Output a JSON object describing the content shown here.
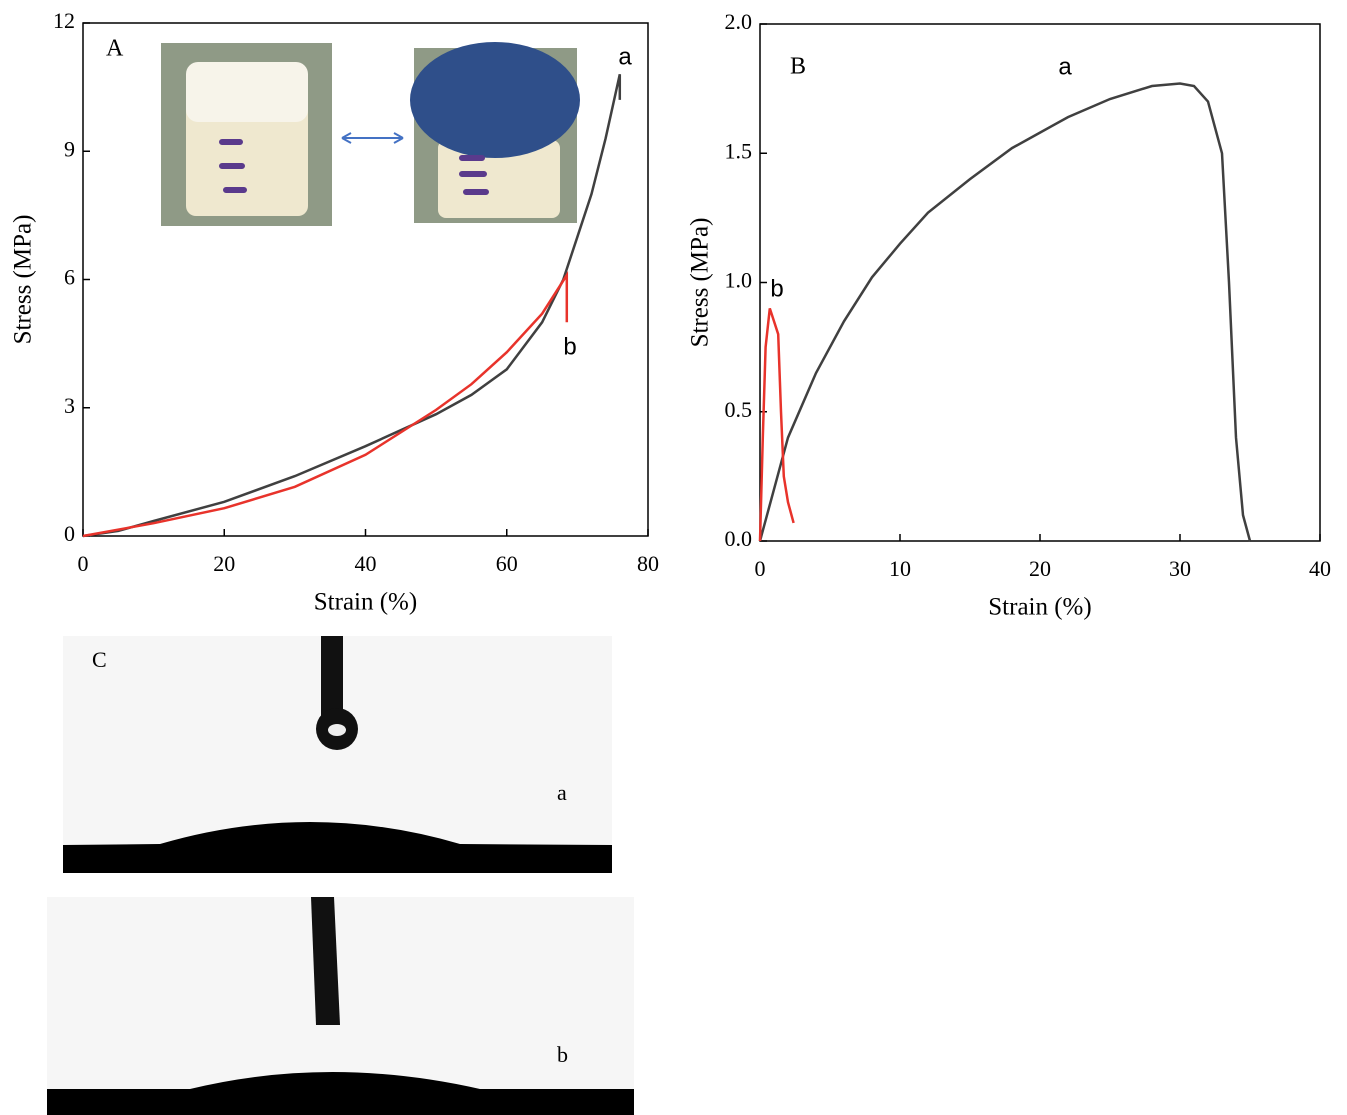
{
  "chart_data": [
    {
      "type": "line",
      "panel": "A",
      "x_label": "Strain (%)",
      "y_label": "Stress (MPa)",
      "xlim": [
        0,
        80
      ],
      "xticks": [
        0,
        20,
        40,
        60,
        80
      ],
      "ylim": [
        0,
        12
      ],
      "yticks": [
        0,
        3,
        6,
        9,
        12
      ],
      "grid": false,
      "series": [
        {
          "name": "a",
          "color": "#404040",
          "x": [
            0,
            5,
            10,
            20,
            30,
            40,
            50,
            55,
            60,
            65,
            68,
            70,
            72,
            74,
            76,
            76
          ],
          "values": [
            0,
            0.12,
            0.35,
            0.8,
            1.4,
            2.1,
            2.85,
            3.3,
            3.9,
            5.0,
            6.0,
            7.0,
            8.0,
            9.3,
            10.8,
            10.2
          ]
        },
        {
          "name": "b",
          "color": "#e8332b",
          "x": [
            0,
            10,
            20,
            30,
            40,
            50,
            55,
            60,
            65,
            68.5,
            68.5
          ],
          "values": [
            0,
            0.3,
            0.65,
            1.15,
            1.9,
            2.95,
            3.55,
            4.3,
            5.2,
            6.1,
            5.0
          ]
        }
      ]
    },
    {
      "type": "line",
      "panel": "B",
      "x_label": "Strain (%)",
      "y_label": "Stress (MPa)",
      "xlim": [
        0,
        40
      ],
      "xticks": [
        0,
        10,
        20,
        30,
        40
      ],
      "ylim": [
        0,
        2
      ],
      "yticks": [
        {
          "value": 0,
          "label": "0.0"
        },
        {
          "value": 0.5,
          "label": "0.5"
        },
        {
          "value": 1,
          "label": "1.0"
        },
        {
          "value": 1.5,
          "label": "1.5"
        },
        {
          "value": 2,
          "label": "2.0"
        }
      ],
      "grid": false,
      "series": [
        {
          "name": "a",
          "color": "#404040",
          "x": [
            0,
            1,
            2,
            4,
            6,
            8,
            10,
            12,
            15,
            18,
            20,
            22,
            25,
            28,
            30,
            31,
            32,
            33,
            33.5,
            34,
            34.5,
            35
          ],
          "values": [
            0,
            0.2,
            0.4,
            0.65,
            0.85,
            1.02,
            1.15,
            1.27,
            1.4,
            1.52,
            1.58,
            1.64,
            1.71,
            1.76,
            1.77,
            1.76,
            1.7,
            1.5,
            1.0,
            0.4,
            0.1,
            0
          ]
        },
        {
          "name": "b",
          "color": "#e8332b",
          "x": [
            0,
            0.2,
            0.4,
            0.7,
            1.0,
            1.3,
            1.5,
            1.7,
            2.0,
            2.4
          ],
          "values": [
            0,
            0.4,
            0.75,
            0.9,
            0.85,
            0.8,
            0.5,
            0.25,
            0.15,
            0.07
          ]
        }
      ]
    }
  ],
  "panel_c": {
    "label": "C",
    "images": [
      "a",
      "b"
    ]
  }
}
